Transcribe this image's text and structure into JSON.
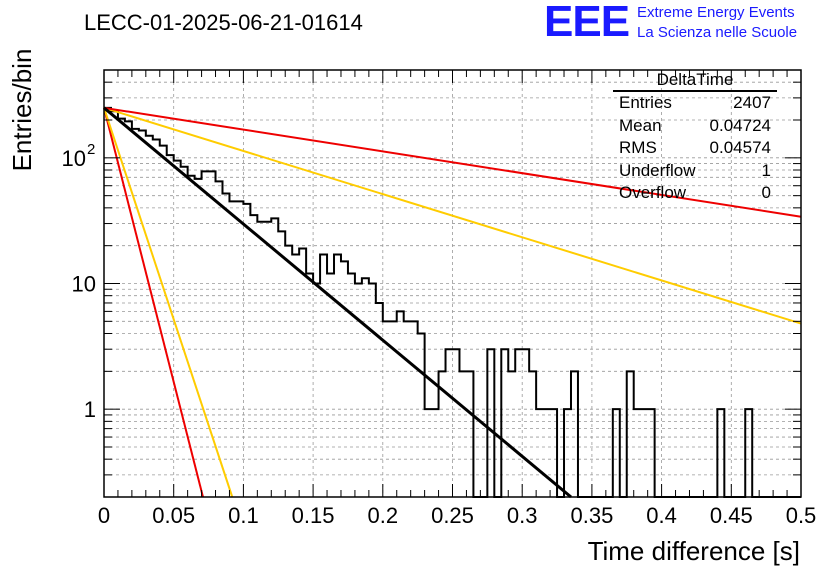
{
  "chart_title": "LECC-01-2025-06-21-01614",
  "logo": {
    "mark": "EEE",
    "line1": "Extreme Energy Events",
    "line2": "La Scienza nelle Scuole",
    "color": "#1a1aff"
  },
  "stats": {
    "title": "DeltaTime",
    "rows": [
      {
        "label": "Entries",
        "value": "2407"
      },
      {
        "label": "Mean",
        "value": "0.04724"
      },
      {
        "label": "RMS",
        "value": "0.04574"
      },
      {
        "label": "Underflow",
        "value": "1"
      },
      {
        "label": "Overflow",
        "value": "0"
      }
    ]
  },
  "chart_data": {
    "type": "line",
    "xlabel": "Time difference [s]",
    "ylabel": "Entries/bin",
    "xlim": [
      0,
      0.5
    ],
    "ylim": [
      0.2,
      500
    ],
    "yscale": "log",
    "grid": true,
    "x_ticks": [
      "0",
      "0.05",
      "0.1",
      "0.15",
      "0.2",
      "0.25",
      "0.3",
      "0.35",
      "0.4",
      "0.45",
      "0.5"
    ],
    "y_ticks": [
      {
        "value": 1,
        "label": "1"
      },
      {
        "value": 10,
        "label": "10"
      },
      {
        "value": 100,
        "label": "10",
        "sup": "2"
      }
    ],
    "histogram": {
      "bin_width": 0.005,
      "color": "#000000",
      "values": [
        250,
        235,
        205,
        195,
        170,
        165,
        150,
        140,
        125,
        105,
        95,
        85,
        72,
        68,
        78,
        78,
        65,
        52,
        45,
        45,
        43,
        35,
        31,
        31,
        33,
        26,
        20,
        17,
        19,
        12,
        10,
        17,
        12,
        17,
        15,
        12,
        10,
        11,
        10,
        7,
        5,
        5,
        6,
        5,
        5,
        4,
        1,
        1,
        2,
        3,
        3,
        2,
        2,
        0,
        0,
        3,
        0,
        3,
        2,
        3,
        3,
        2,
        1,
        1,
        1,
        0,
        1,
        2,
        0,
        0,
        0,
        0,
        0,
        1,
        0,
        2,
        1,
        1,
        1,
        0,
        0,
        0,
        0,
        0,
        0,
        0,
        0,
        0,
        1,
        0,
        0,
        0,
        1,
        0,
        0,
        0,
        0,
        0,
        0,
        0
      ]
    },
    "curves": [
      {
        "color": "#ffcc00",
        "x": [
          0,
          0.5
        ],
        "y": [
          250,
          4.8
        ]
      },
      {
        "color": "#ee0000",
        "x": [
          0,
          0.5
        ],
        "y": [
          250,
          34
        ]
      },
      {
        "color": "#ee0000",
        "x": [
          0,
          0.071
        ],
        "y": [
          250,
          0.2
        ]
      },
      {
        "color": "#ffcc00",
        "x": [
          0,
          0.092
        ],
        "y": [
          250,
          0.2
        ]
      },
      {
        "color": "#000000",
        "x": [
          0,
          0.335
        ],
        "y": [
          250,
          0.2
        ]
      }
    ]
  }
}
